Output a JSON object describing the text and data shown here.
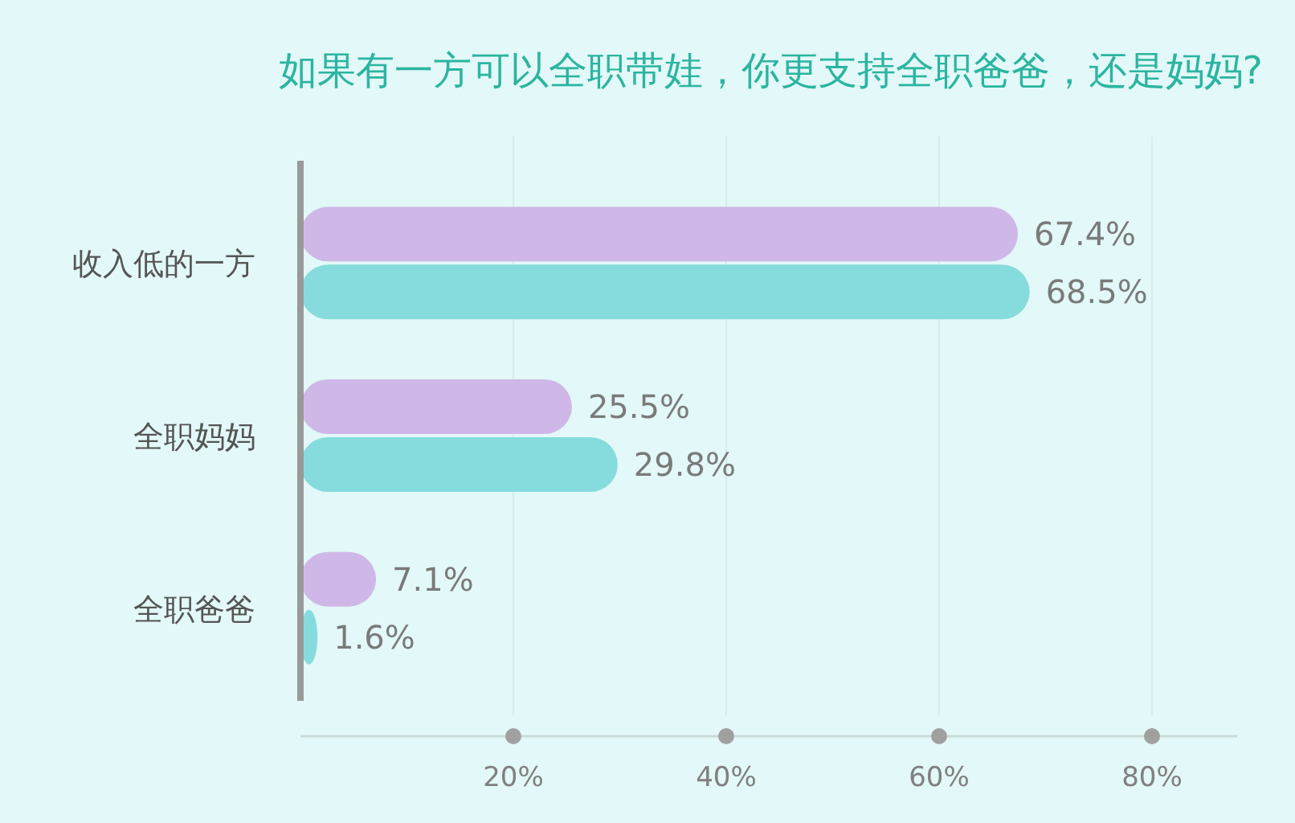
{
  "chart_data": {
    "type": "bar",
    "orientation": "horizontal",
    "title": "如果有一方可以全职带娃，你更支持全职爸爸，还是妈妈?",
    "categories": [
      "收入低的一方",
      "全职妈妈",
      "全职爸爸"
    ],
    "series": [
      {
        "color": "#cfb8e8",
        "values": [
          67.4,
          25.5,
          7.1
        ],
        "value_labels": [
          "67.4%",
          "25.5%",
          "7.1%"
        ]
      },
      {
        "color": "#86dcdc",
        "values": [
          68.5,
          29.8,
          1.6
        ],
        "value_labels": [
          "68.5%",
          "29.8%",
          "1.6%"
        ]
      }
    ],
    "xlim": [
      0,
      88
    ],
    "xticks": [
      {
        "value": 20,
        "label": "20%"
      },
      {
        "value": 40,
        "label": "40%"
      },
      {
        "value": 60,
        "label": "60%"
      },
      {
        "value": 80,
        "label": "80%"
      }
    ],
    "grid": "x"
  }
}
